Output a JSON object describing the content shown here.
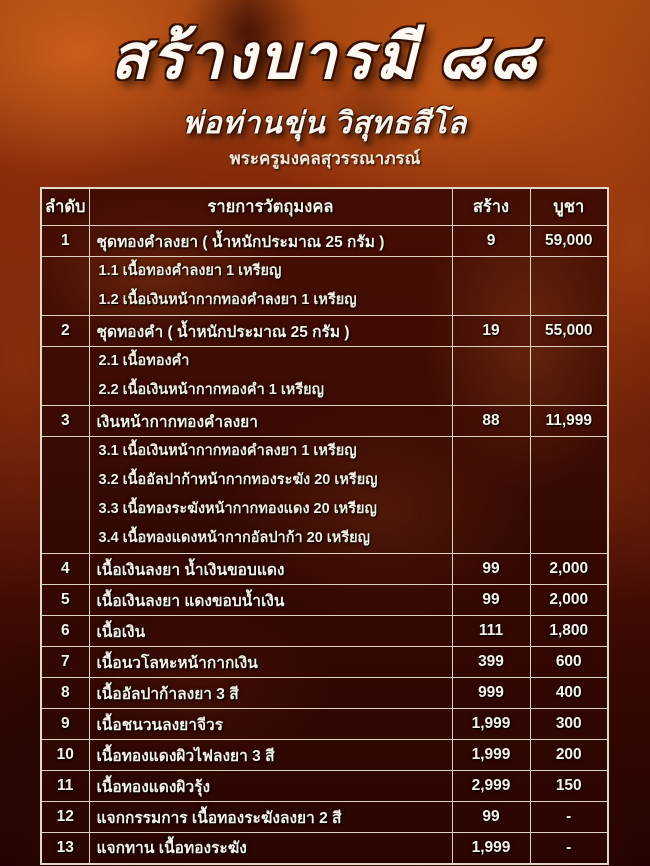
{
  "header": {
    "title": "สร้างบารมี ๘๘",
    "subtitle": "พ่อท่านขุ่น วิสุทธสีโล",
    "temple_title": "พระครูมงคลสุวรรณาภรณ์"
  },
  "colors": {
    "background_orange": "#a34510",
    "table_maroon": "#470e05",
    "border": "#ddd2c0",
    "text": "#f7f2e8"
  },
  "table": {
    "columns": [
      "ลำดับ",
      "รายการวัตถุมงคล",
      "สร้าง",
      "บูชา"
    ],
    "rows": [
      {
        "no": "1",
        "item": "ชุดทองคำลงยา  ( น้ำหนักประมาณ 25 กรัม )",
        "made": "9",
        "price": "59,000",
        "subs": [
          "1.1 เนื้อทองคำลงยา 1 เหรียญ",
          "1.2 เนื้อเงินหน้ากากทองคำลงยา 1 เหรียญ"
        ]
      },
      {
        "no": "2",
        "item": "ชุดทองคำ ( น้ำหนักประมาณ 25 กรัม )",
        "made": "19",
        "price": "55,000",
        "subs": [
          "2.1 เนื้อทองคำ",
          "2.2 เนื้อเงินหน้ากากทองคำ 1 เหรียญ"
        ]
      },
      {
        "no": "3",
        "item": "เงินหน้ากากทองคำลงยา",
        "made": "88",
        "price": "11,999",
        "subs": [
          "3.1 เนื้อเงินหน้ากากทองคำลงยา  1 เหรียญ",
          "3.2 เนื้ออัลปาก้าหน้ากากทองระฆัง  20 เหรียญ",
          "3.3 เนื้อทองระฆังหน้ากากทองแดง  20 เหรียญ",
          "3.4 เนื้อทองแดงหน้ากากอัลปาก้า 20 เหรียญ"
        ]
      },
      {
        "no": "4",
        "item": "เนื้อเงินลงยา น้ำเงินขอบแดง",
        "made": "99",
        "price": "2,000"
      },
      {
        "no": "5",
        "item": "เนื้อเงินลงยา แดงขอบน้ำเงิน",
        "made": "99",
        "price": "2,000"
      },
      {
        "no": "6",
        "item": "เนื้อเงิน",
        "made": "111",
        "price": "1,800"
      },
      {
        "no": "7",
        "item": "เนื้อนวโลหะหน้ากากเงิน",
        "made": "399",
        "price": "600"
      },
      {
        "no": "8",
        "item": "เนื้ออัลปาก้าลงยา 3 สี",
        "made": "999",
        "price": "400"
      },
      {
        "no": "9",
        "item": "เนื้อชนวนลงยาจีวร",
        "made": "1,999",
        "price": "300"
      },
      {
        "no": "10",
        "item": "เนื้อทองแดงผิวไฟลงยา 3 สี",
        "made": "1,999",
        "price": "200"
      },
      {
        "no": "11",
        "item": "เนื้อทองแดงผิวรุ้ง",
        "made": "2,999",
        "price": "150"
      },
      {
        "no": "12",
        "item": "แจกกรรมการ  เนื้อทองระฆังลงยา 2 สี",
        "made": "99",
        "price": "-"
      },
      {
        "no": "13",
        "item": "แจกทาน เนื้อทองระฆัง",
        "made": "1,999",
        "price": "-"
      }
    ]
  }
}
